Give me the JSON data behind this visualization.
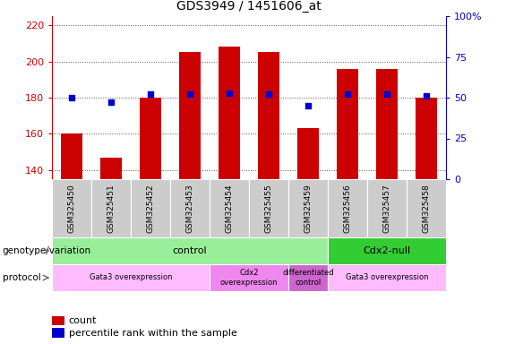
{
  "title": "GDS3949 / 1451606_at",
  "samples": [
    "GSM325450",
    "GSM325451",
    "GSM325452",
    "GSM325453",
    "GSM325454",
    "GSM325455",
    "GSM325459",
    "GSM325456",
    "GSM325457",
    "GSM325458"
  ],
  "counts": [
    160,
    147,
    180,
    205,
    208,
    205,
    163,
    196,
    196,
    180
  ],
  "percentile_ranks": [
    50,
    47,
    52,
    52,
    53,
    52,
    45,
    52,
    52,
    51
  ],
  "ylim_left": [
    135,
    225
  ],
  "ylim_right": [
    0,
    100
  ],
  "yticks_left": [
    140,
    160,
    180,
    200,
    220
  ],
  "yticks_right": [
    0,
    25,
    50,
    75,
    100
  ],
  "bar_color": "#cc0000",
  "dot_color": "#0000cc",
  "bar_bottom": 135,
  "genotype_groups": [
    {
      "label": "control",
      "start": 0,
      "end": 7,
      "color": "#99ee99"
    },
    {
      "label": "Cdx2-null",
      "start": 7,
      "end": 10,
      "color": "#33cc33"
    }
  ],
  "protocol_groups": [
    {
      "label": "Gata3 overexpression",
      "start": 0,
      "end": 4,
      "color": "#ffbbff"
    },
    {
      "label": "Cdx2\noverexpression",
      "start": 4,
      "end": 6,
      "color": "#ee88ee"
    },
    {
      "label": "differentiated\ncontrol",
      "start": 6,
      "end": 7,
      "color": "#cc66cc"
    },
    {
      "label": "Gata3 overexpression",
      "start": 7,
      "end": 10,
      "color": "#ffbbff"
    }
  ],
  "sample_box_color": "#cccccc",
  "left_axis_color": "#cc0000",
  "right_axis_color": "#0000cc",
  "grid_color": "#555555",
  "label_genotype": "genotype/variation",
  "label_protocol": "protocol",
  "legend_count": "count",
  "legend_percentile": "percentile rank within the sample"
}
